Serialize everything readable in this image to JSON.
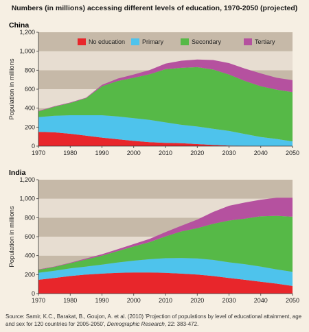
{
  "title": "Numbers (in millions) accessing different levels of education, 1970-2050 (projected)",
  "source": {
    "prefix": "Source: Samir, K.C., Barakat, B., Goujon, A. et al. (2010) 'Projection of populations by level of educational attainment, age and sex for 120 countries for 2005-2050', ",
    "journal": "Demographic Research",
    "suffix": ", 22: 383-472."
  },
  "colors": {
    "No education": "#e8262b",
    "Primary": "#4ec3ec",
    "Secondary": "#56b947",
    "Tertiary": "#b5519f",
    "band_dark": "#c6b9a8",
    "band_light": "#e7ddd1"
  },
  "chart_data": [
    {
      "type": "area",
      "stacked": true,
      "title": "China",
      "xlabel": "",
      "ylabel": "Population in millions",
      "x": [
        1970,
        1975,
        1980,
        1985,
        1990,
        1995,
        2000,
        2005,
        2010,
        2015,
        2020,
        2025,
        2030,
        2035,
        2040,
        2045,
        2050
      ],
      "xticks": [
        1970,
        1980,
        1990,
        2000,
        2010,
        2020,
        2030,
        2040,
        2050
      ],
      "yticks": [
        0,
        200,
        400,
        600,
        800,
        1000,
        1200
      ],
      "yticklabels": [
        "0",
        "200",
        "400",
        "600",
        "800",
        "1,000",
        "1,200"
      ],
      "ylim": [
        0,
        1200
      ],
      "xlim": [
        1970,
        2050
      ],
      "legend": "top",
      "series": [
        {
          "name": "No education",
          "values": [
            150,
            145,
            130,
            110,
            90,
            72,
            55,
            42,
            35,
            30,
            22,
            12,
            5,
            2,
            1,
            0,
            0
          ]
        },
        {
          "name": "Primary",
          "values": [
            155,
            175,
            195,
            215,
            235,
            240,
            240,
            235,
            215,
            195,
            185,
            170,
            155,
            125,
            95,
            75,
            50
          ]
        },
        {
          "name": "Secondary",
          "values": [
            60,
            95,
            130,
            180,
            305,
            375,
            425,
            480,
            560,
            600,
            625,
            625,
            595,
            560,
            535,
            520,
            520
          ]
        },
        {
          "name": "Tertiary",
          "values": [
            5,
            5,
            5,
            5,
            15,
            25,
            35,
            45,
            60,
            75,
            80,
            100,
            120,
            130,
            135,
            125,
            125
          ]
        }
      ]
    },
    {
      "type": "area",
      "stacked": true,
      "title": "India",
      "xlabel": "",
      "ylabel": "Population in millions",
      "x": [
        1970,
        1975,
        1980,
        1985,
        1990,
        1995,
        2000,
        2005,
        2010,
        2015,
        2020,
        2025,
        2030,
        2035,
        2040,
        2045,
        2050
      ],
      "xticks": [
        1970,
        1980,
        1990,
        2000,
        2010,
        2020,
        2030,
        2040,
        2050
      ],
      "yticks": [
        0,
        200,
        400,
        600,
        800,
        1000,
        1200
      ],
      "yticklabels": [
        "0",
        "200",
        "400",
        "600",
        "800",
        "1,000",
        "1,200"
      ],
      "ylim": [
        0,
        1200
      ],
      "xlim": [
        1970,
        2050
      ],
      "legend": "none",
      "series": [
        {
          "name": "No education",
          "values": [
            145,
            165,
            185,
            200,
            210,
            218,
            222,
            222,
            218,
            210,
            200,
            185,
            165,
            145,
            125,
            105,
            80
          ]
        },
        {
          "name": "Primary",
          "values": [
            75,
            75,
            80,
            85,
            95,
            110,
            125,
            140,
            155,
            165,
            170,
            170,
            165,
            165,
            160,
            150,
            150
          ]
        },
        {
          "name": "Secondary",
          "values": [
            30,
            40,
            55,
            75,
            95,
            120,
            150,
            180,
            230,
            280,
            320,
            380,
            440,
            480,
            530,
            565,
            580
          ]
        },
        {
          "name": "Tertiary",
          "values": [
            5,
            5,
            5,
            10,
            15,
            20,
            25,
            35,
            45,
            60,
            90,
            125,
            155,
            170,
            175,
            190,
            200
          ]
        }
      ]
    }
  ]
}
